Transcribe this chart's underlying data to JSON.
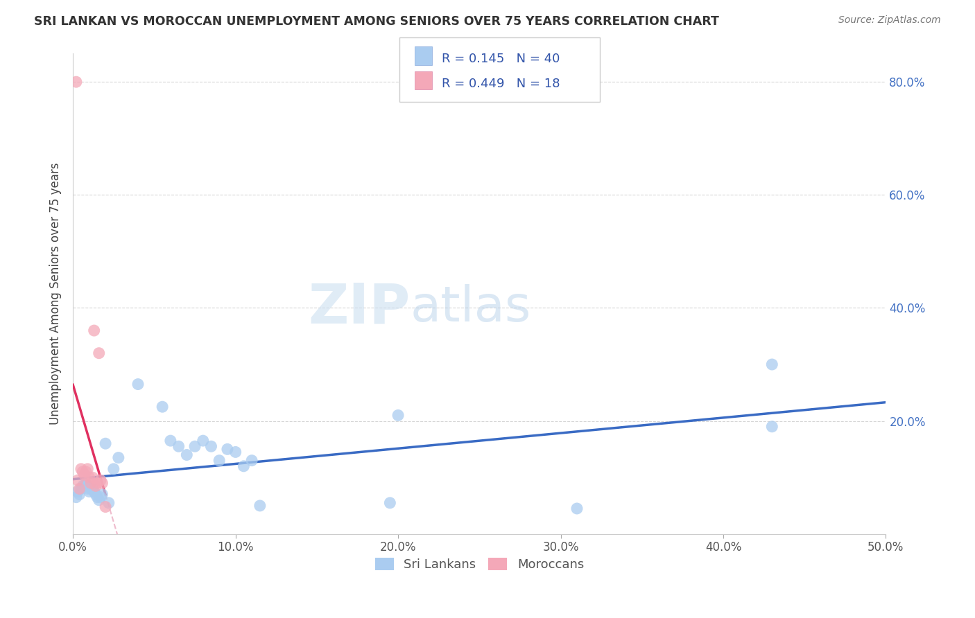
{
  "title": "SRI LANKAN VS MOROCCAN UNEMPLOYMENT AMONG SENIORS OVER 75 YEARS CORRELATION CHART",
  "source": "Source: ZipAtlas.com",
  "ylabel": "Unemployment Among Seniors over 75 years",
  "xlim": [
    0.0,
    0.5
  ],
  "ylim": [
    0.0,
    0.85
  ],
  "xticks": [
    0.0,
    0.1,
    0.2,
    0.3,
    0.4,
    0.5
  ],
  "xtick_labels": [
    "0.0%",
    "10.0%",
    "20.0%",
    "30.0%",
    "40.0%",
    "50.0%"
  ],
  "yticks": [
    0.0,
    0.2,
    0.4,
    0.6,
    0.8
  ],
  "ytick_labels": [
    "",
    "20.0%",
    "40.0%",
    "60.0%",
    "80.0%"
  ],
  "sri_lankan_x": [
    0.002,
    0.003,
    0.004,
    0.005,
    0.006,
    0.007,
    0.008,
    0.009,
    0.01,
    0.011,
    0.012,
    0.013,
    0.014,
    0.015,
    0.016,
    0.017,
    0.018,
    0.02,
    0.022,
    0.025,
    0.028,
    0.04,
    0.055,
    0.06,
    0.065,
    0.07,
    0.075,
    0.08,
    0.085,
    0.09,
    0.095,
    0.1,
    0.105,
    0.11,
    0.115,
    0.195,
    0.2,
    0.31,
    0.43,
    0.43
  ],
  "sri_lankan_y": [
    0.065,
    0.075,
    0.07,
    0.08,
    0.085,
    0.085,
    0.09,
    0.08,
    0.075,
    0.08,
    0.08,
    0.075,
    0.07,
    0.065,
    0.06,
    0.065,
    0.07,
    0.16,
    0.055,
    0.115,
    0.135,
    0.265,
    0.225,
    0.165,
    0.155,
    0.14,
    0.155,
    0.165,
    0.155,
    0.13,
    0.15,
    0.145,
    0.12,
    0.13,
    0.05,
    0.055,
    0.21,
    0.045,
    0.19,
    0.3
  ],
  "moroccan_x": [
    0.002,
    0.003,
    0.004,
    0.005,
    0.006,
    0.007,
    0.008,
    0.009,
    0.01,
    0.011,
    0.012,
    0.013,
    0.014,
    0.015,
    0.016,
    0.017,
    0.018,
    0.02
  ],
  "moroccan_y": [
    0.8,
    0.095,
    0.08,
    0.115,
    0.11,
    0.105,
    0.11,
    0.115,
    0.1,
    0.09,
    0.1,
    0.36,
    0.085,
    0.09,
    0.32,
    0.095,
    0.09,
    0.048
  ],
  "sri_lankan_R": 0.145,
  "sri_lankan_N": 40,
  "moroccan_R": 0.449,
  "moroccan_N": 18,
  "sri_lankan_color": "#aaccf0",
  "moroccan_color": "#f4a8b8",
  "sri_lankan_line_color": "#3a6bc4",
  "moroccan_line_color": "#e03060",
  "moroccan_dash_color": "#e8a0b8",
  "watermark_zip": "ZIP",
  "watermark_atlas": "atlas",
  "background_color": "#ffffff",
  "grid_color": "#cccccc",
  "legend_box_color": "#e8e8e8"
}
